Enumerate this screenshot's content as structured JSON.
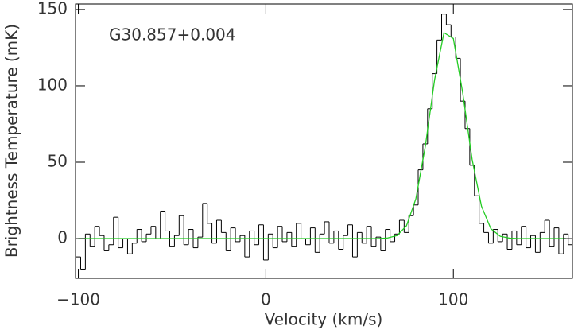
{
  "chart_data": {
    "type": "step",
    "annotation": "G30.857+0.004",
    "xlabel": "Velocity (km/s)",
    "ylabel": "Brightness Temperature (mK)",
    "xlim": [
      -101.5,
      163.5
    ],
    "ylim": [
      -26,
      153.6
    ],
    "xticks": [
      {
        "value": -100,
        "label": "−100"
      },
      0,
      100
    ],
    "yticks": [
      0,
      50,
      100,
      150
    ],
    "x": [
      -100,
      -97.5,
      -95,
      -92.5,
      -90,
      -87.5,
      -85,
      -82.5,
      -80,
      -77.5,
      -75,
      -72.5,
      -70,
      -67.5,
      -65,
      -62.5,
      -60,
      -57.5,
      -55,
      -52.5,
      -50,
      -47.5,
      -45,
      -42.5,
      -40,
      -37.5,
      -35,
      -32.5,
      -30,
      -27.5,
      -25,
      -22.5,
      -20,
      -17.5,
      -15,
      -12.5,
      -10,
      -7.5,
      -5,
      -2.5,
      0,
      2.5,
      5,
      7.5,
      10,
      12.5,
      15,
      17.5,
      20,
      22.5,
      25,
      27.5,
      30,
      32.5,
      35,
      37.5,
      40,
      42.5,
      45,
      47.5,
      50,
      52.5,
      55,
      57.5,
      60,
      62.5,
      65,
      67.5,
      70,
      72.5,
      75,
      77.5,
      80,
      82.5,
      85,
      87.5,
      90,
      92.5,
      95,
      97.5,
      100,
      102.5,
      105,
      107.5,
      110,
      112.5,
      115,
      117.5,
      120,
      122.5,
      125,
      127.5,
      130,
      132.5,
      135,
      137.5,
      140,
      142.5,
      145,
      147.5,
      150,
      152.5,
      155,
      157.5,
      160,
      162.5
    ],
    "series": [
      {
        "color": "#000000",
        "values": [
          -12,
          -20,
          3,
          -5,
          8,
          2,
          -8,
          -4,
          14,
          -6,
          0,
          -10,
          -3,
          6,
          -2,
          3,
          8,
          0,
          18,
          5,
          -5,
          2,
          15,
          -4,
          6,
          -6,
          1,
          23,
          10,
          -3,
          12,
          4,
          -8,
          7,
          -2,
          2,
          -12,
          5,
          -4,
          9,
          -14,
          3,
          -6,
          8,
          -2,
          4,
          -5,
          10,
          0,
          -4,
          7,
          -9,
          3,
          11,
          -3,
          5,
          -7,
          2,
          9,
          -12,
          4,
          -3,
          8,
          -5,
          1,
          -8,
          6,
          -2,
          3,
          12,
          4,
          15,
          22,
          45,
          62,
          85,
          108,
          130,
          147,
          140,
          132,
          118,
          90,
          72,
          48,
          28,
          10,
          4,
          -3,
          6,
          -2,
          3,
          -7,
          5,
          -4,
          8,
          -6,
          2,
          -9,
          4,
          12,
          -5,
          7,
          -10,
          3,
          -4
        ]
      },
      {
        "color": "#22cc22",
        "x": [
          -100,
          -95,
          -90,
          -85,
          -80,
          -75,
          -70,
          -65,
          -60,
          -55,
          -50,
          -45,
          -40,
          -35,
          -30,
          -25,
          -20,
          -15,
          -10,
          -5,
          0,
          5,
          10,
          15,
          20,
          25,
          30,
          35,
          40,
          45,
          50,
          55,
          60,
          65,
          70,
          75,
          80,
          85,
          90,
          95,
          100,
          105,
          110,
          115,
          120,
          125,
          130,
          135,
          140,
          145,
          150,
          155,
          160
        ],
        "values": [
          0,
          0,
          0,
          0,
          0,
          0,
          0,
          0,
          0,
          0,
          0,
          0,
          0,
          0,
          0,
          0,
          0,
          0,
          0,
          0,
          0,
          0,
          0,
          0,
          0,
          0,
          0,
          0,
          0,
          0,
          0,
          0,
          0,
          0.4,
          2.0,
          8.4,
          26,
          60,
          104,
          134.8,
          131,
          95.3,
          51.9,
          21.2,
          6.5,
          1.5,
          0.3,
          0,
          0,
          0,
          0,
          0,
          0
        ]
      }
    ]
  }
}
